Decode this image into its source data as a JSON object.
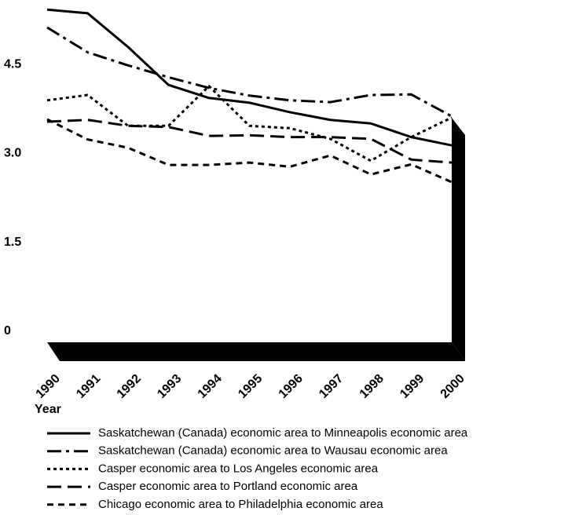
{
  "chart_data": {
    "type": "line",
    "x_label": "Year",
    "categories": [
      "1990",
      "1991",
      "1992",
      "1993",
      "1994",
      "1995",
      "1996",
      "1997",
      "1998",
      "1999",
      "2000"
    ],
    "ylim": [
      0,
      5.45
    ],
    "yticks": [
      0,
      1.5,
      {
        "value": 3,
        "label": "3.0"
      },
      4.5
    ],
    "series": [
      {
        "name": "Saskatchewan (Canada) economic area to Minneapolis economic area",
        "color": "#000000",
        "dash": "solid",
        "values": [
          5.4,
          5.34,
          4.77,
          4.13,
          3.91,
          3.83,
          3.67,
          3.54,
          3.48,
          3.25,
          3.11
        ]
      },
      {
        "name": "Saskatchewan (Canada) economic area to Wausau economic area",
        "color": "#000000",
        "dash": "dash-dot",
        "values": [
          5.1,
          4.68,
          4.46,
          4.26,
          4.08,
          3.95,
          3.87,
          3.84,
          3.96,
          3.97,
          3.6
        ]
      },
      {
        "name": "Casper economic area to Los Angeles economic area",
        "color": "#000000",
        "dash": "dotted",
        "values": [
          3.87,
          3.96,
          3.44,
          3.44,
          4.11,
          3.44,
          3.4,
          3.22,
          2.85,
          3.25,
          3.58
        ]
      },
      {
        "name": "Casper economic area to Portland economic area",
        "color": "#000000",
        "dash": "long-dash",
        "values": [
          3.51,
          3.54,
          3.44,
          3.42,
          3.27,
          3.28,
          3.25,
          3.25,
          3.22,
          2.87,
          2.82
        ]
      },
      {
        "name": "Chicago economic area to Philadelphia economic area",
        "color": "#000000",
        "dash": "short-dash",
        "values": [
          3.55,
          3.21,
          3.07,
          2.78,
          2.78,
          2.82,
          2.75,
          2.94,
          2.62,
          2.79,
          2.49
        ]
      }
    ]
  }
}
